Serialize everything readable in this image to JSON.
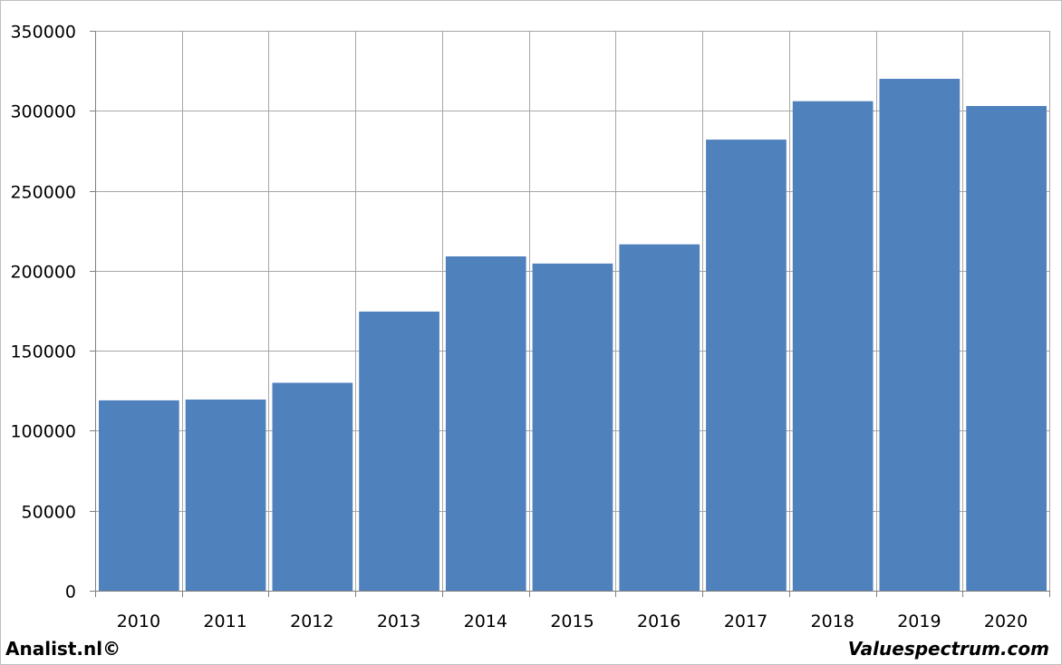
{
  "chart_data": {
    "type": "bar",
    "title": "",
    "xlabel": "",
    "ylabel": "",
    "categories": [
      "2010",
      "2011",
      "2012",
      "2013",
      "2014",
      "2015",
      "2016",
      "2017",
      "2018",
      "2019",
      "2020"
    ],
    "values": [
      119000,
      119500,
      130000,
      174500,
      209000,
      204500,
      216500,
      282000,
      306000,
      320000,
      303000
    ],
    "ylim": [
      0,
      350000
    ],
    "yticks": [
      0,
      50000,
      100000,
      150000,
      200000,
      250000,
      300000,
      350000
    ],
    "ytick_labels": [
      "0",
      "50000",
      "100000",
      "150000",
      "200000",
      "250000",
      "300000",
      "350000"
    ],
    "grid": true,
    "bar_color": "#4f81bd",
    "grid_color": "#a6a6a6"
  },
  "footer": {
    "left": "Analist.nl©",
    "right": "Valuespectrum.com"
  }
}
